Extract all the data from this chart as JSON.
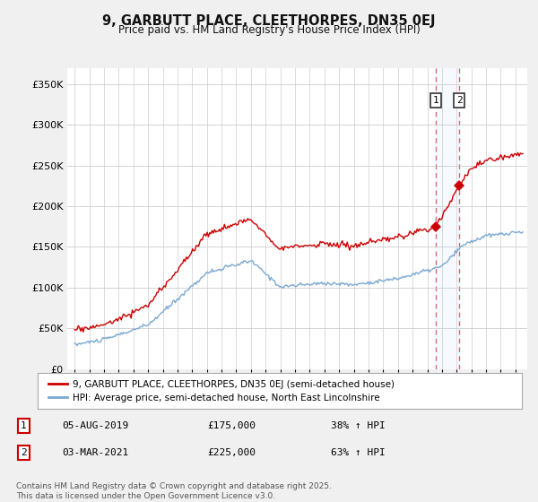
{
  "title": "9, GARBUTT PLACE, CLEETHORPES, DN35 0EJ",
  "subtitle": "Price paid vs. HM Land Registry's House Price Index (HPI)",
  "ylim": [
    0,
    370000
  ],
  "xlim_start": 1994.5,
  "xlim_end": 2025.8,
  "purchase1": {
    "date_num": 2019.58,
    "price": 175000,
    "label": "1",
    "date_str": "05-AUG-2019",
    "pct": "38%"
  },
  "purchase2": {
    "date_num": 2021.17,
    "price": 225000,
    "label": "2",
    "date_str": "03-MAR-2021",
    "pct": "63%"
  },
  "line_color_house": "#cc0000",
  "line_color_hpi": "#7aa8d2",
  "dot_color_house": "#cc0000",
  "legend_house": "9, GARBUTT PLACE, CLEETHORPES, DN35 0EJ (semi-detached house)",
  "legend_hpi": "HPI: Average price, semi-detached house, North East Lincolnshire",
  "footer": "Contains HM Land Registry data © Crown copyright and database right 2025.\nThis data is licensed under the Open Government Licence v3.0.",
  "background_color": "#f0f0f0",
  "plot_bg_color": "#ffffff",
  "grid_color": "#cccccc",
  "vline_color": "#dd6677",
  "span_color": "#ddeeff"
}
